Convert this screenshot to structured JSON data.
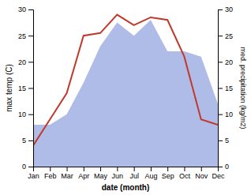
{
  "chart_data": {
    "type": "line",
    "xlabel": "date (month)",
    "ylabel": "max temp (C)",
    "y2label": "med. precipitation (kg/m2)",
    "categories": [
      "Jan",
      "Feb",
      "Mar",
      "Apr",
      "May",
      "Jun",
      "Jul",
      "Aug",
      "Sep",
      "Oct",
      "Nov",
      "Dec"
    ],
    "series": [
      {
        "type": "area",
        "color": "#b0bce8",
        "axis": "y2",
        "values": [
          8,
          8,
          10,
          16,
          23,
          27.5,
          25,
          28,
          22,
          22,
          21,
          12
        ]
      },
      {
        "type": "line",
        "color": "#c0392b",
        "values": [
          4,
          9,
          14,
          25,
          25.5,
          29,
          27,
          28.5,
          28,
          21,
          9,
          8
        ]
      }
    ],
    "ylim": [
      0,
      30
    ],
    "yticks": [
      0,
      5,
      10,
      15,
      20,
      25,
      30
    ],
    "y2lim": [
      0,
      30
    ],
    "y2ticks": [
      0,
      5,
      10,
      15,
      20,
      25,
      30
    ],
    "grid": false
  }
}
